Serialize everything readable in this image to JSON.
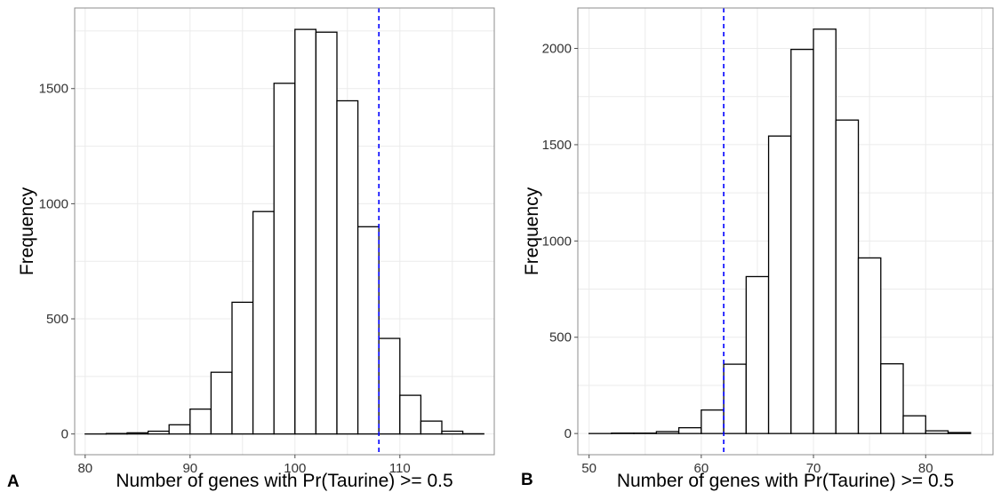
{
  "chart_data": [
    {
      "type": "bar",
      "panel_label": "A",
      "xlabel": "Number of genes with Pr(Taurine) >= 0.5",
      "ylabel": "Frequency",
      "xlim": [
        79,
        119
      ],
      "ylim": [
        -90,
        1850
      ],
      "xticks": [
        80,
        90,
        100,
        110
      ],
      "yticks": [
        0,
        500,
        1000,
        1500
      ],
      "bin_width": 2,
      "bin_starts": [
        80,
        82,
        84,
        86,
        88,
        90,
        92,
        94,
        96,
        98,
        100,
        102,
        104,
        106,
        108,
        110,
        112,
        114,
        116
      ],
      "values": [
        0,
        2,
        5,
        12,
        40,
        108,
        268,
        572,
        966,
        1523,
        1757,
        1745,
        1447,
        900,
        415,
        168,
        56,
        12,
        1
      ],
      "reference_line_x": 108,
      "grid": true,
      "colors": {
        "bar_fill": "#ffffff",
        "bar_stroke": "#000000",
        "reference_line": "#0000ff"
      }
    },
    {
      "type": "bar",
      "panel_label": "B",
      "xlabel": "Number of genes with Pr(Taurine) >= 0.5",
      "ylabel": "Frequency",
      "xlim": [
        49,
        86
      ],
      "ylim": [
        -110,
        2210
      ],
      "xticks": [
        50,
        60,
        70,
        80
      ],
      "yticks": [
        0,
        500,
        1000,
        1500,
        2000
      ],
      "bin_width": 2,
      "bin_starts": [
        50,
        52,
        54,
        56,
        58,
        60,
        62,
        64,
        66,
        68,
        70,
        72,
        74,
        76,
        78,
        80,
        82
      ],
      "values": [
        0,
        2,
        2,
        10,
        30,
        122,
        360,
        815,
        1545,
        1995,
        2100,
        1628,
        912,
        362,
        92,
        14,
        5
      ],
      "reference_line_x": 62,
      "grid": true,
      "colors": {
        "bar_fill": "#ffffff",
        "bar_stroke": "#000000",
        "reference_line": "#0000ff"
      }
    }
  ]
}
